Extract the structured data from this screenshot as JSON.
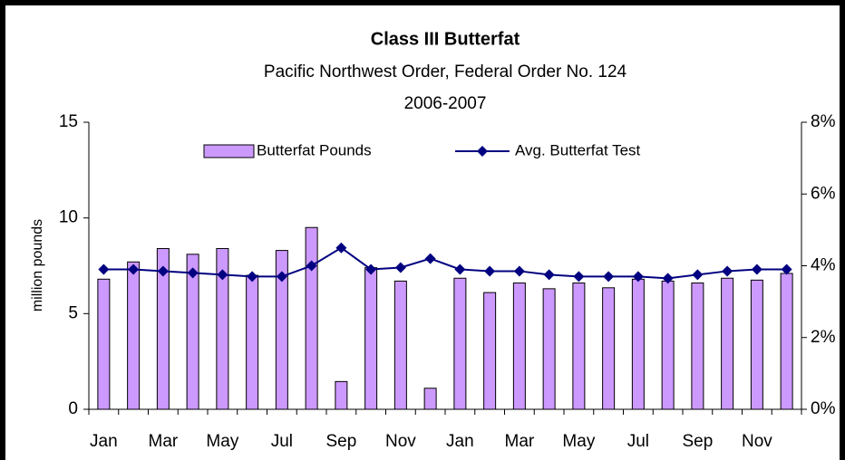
{
  "chart_data": {
    "type": "bar_line",
    "title": "Class III Butterfat",
    "subtitle": [
      "Pacific Northwest Order, Federal Order No. 124",
      "2006-2007"
    ],
    "y_label": "million pounds",
    "categories": [
      "Jan",
      null,
      "Mar",
      null,
      "May",
      null,
      "Jul",
      null,
      "Sep",
      null,
      "Nov",
      null,
      "Jan",
      null,
      "Mar",
      null,
      "May",
      null,
      "Jul",
      null,
      "Sep",
      null,
      "Nov",
      null
    ],
    "series": [
      {
        "name": "Butterfat Pounds",
        "type": "bar",
        "color": "#cc99ff",
        "axis": "y",
        "values": [
          6.8,
          7.7,
          8.4,
          8.1,
          8.4,
          7.0,
          8.3,
          9.5,
          1.45,
          7.4,
          6.7,
          1.1,
          6.85,
          6.1,
          6.6,
          6.3,
          6.6,
          6.35,
          6.8,
          6.7,
          6.6,
          6.85,
          6.75,
          7.1
        ]
      },
      {
        "name": "Avg. Butterfat Test",
        "type": "line",
        "color": "#000080",
        "axis": "y2",
        "values": [
          3.9,
          3.9,
          3.85,
          3.8,
          3.75,
          3.7,
          3.7,
          4.0,
          4.5,
          3.9,
          3.95,
          4.2,
          3.9,
          3.85,
          3.85,
          3.75,
          3.7,
          3.7,
          3.7,
          3.65,
          3.75,
          3.85,
          3.9,
          3.9
        ]
      }
    ],
    "ylim": [
      0,
      15
    ],
    "yticks": [
      0,
      5,
      10,
      15
    ],
    "y2lim": [
      0,
      8
    ],
    "y2ticks": [
      {
        "value": 0,
        "label": "0%"
      },
      {
        "value": 2,
        "label": "2%"
      },
      {
        "value": 4,
        "label": "4%"
      },
      {
        "value": 6,
        "label": "6%"
      },
      {
        "value": 8,
        "label": "8%"
      }
    ],
    "legend": "top"
  }
}
